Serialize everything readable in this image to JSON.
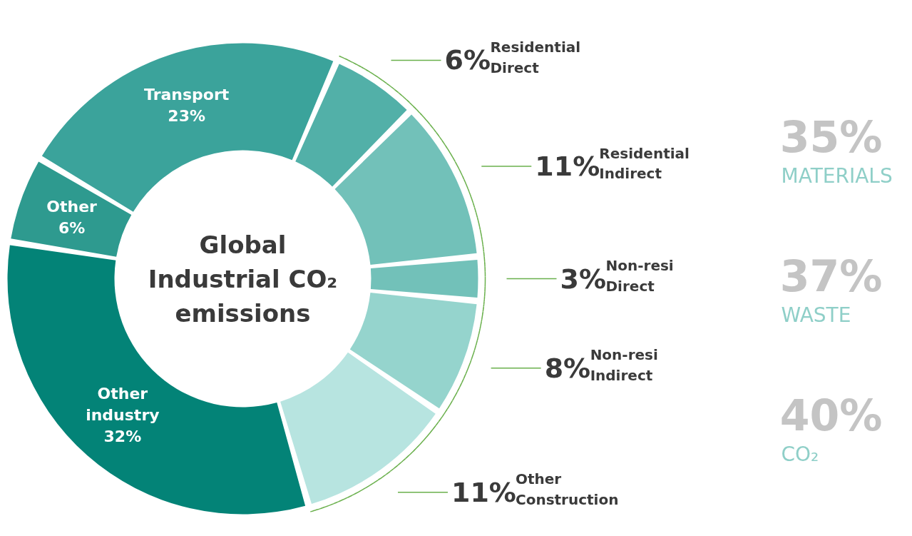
{
  "chart_data": {
    "type": "donut",
    "title": "Global Industrial CO₂ emissions",
    "categories": [
      "Other",
      "Transport",
      "Residential Direct",
      "Residential Indirect",
      "Non-resi Direct",
      "Non-resi Indirect",
      "Other Construction",
      "Other industry"
    ],
    "values": [
      6,
      23,
      6,
      11,
      3,
      8,
      11,
      32
    ],
    "colors": [
      "#2e9a8f",
      "#3ba39b",
      "#52b0a8",
      "#72c1b9",
      "#72c1b9",
      "#95d4cd",
      "#b7e4e0",
      "#038377"
    ],
    "value_labels": [
      "6%",
      "23%",
      "6%",
      "11%",
      "3%",
      "8%",
      "11%",
      "32%"
    ],
    "annotations": [
      "35% MATERIALS",
      "37% WASTE",
      "40% CO₂"
    ]
  }
}
